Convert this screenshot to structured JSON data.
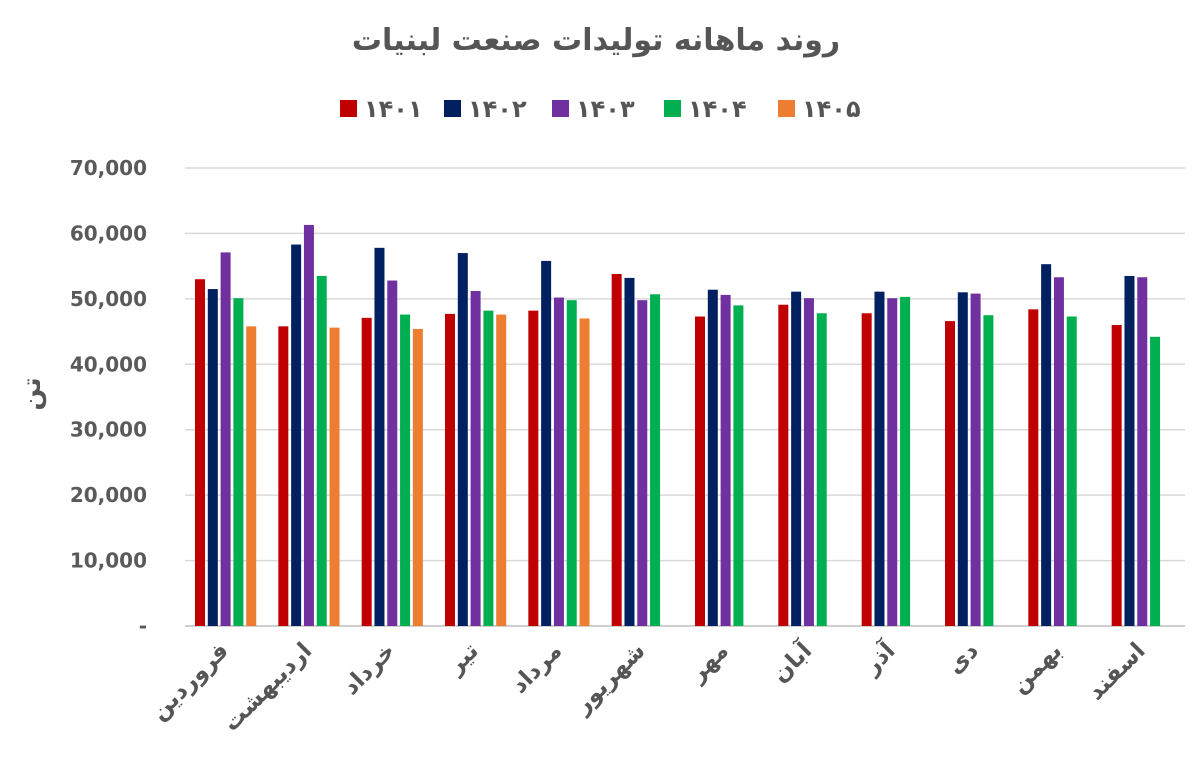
{
  "chart_data": {
    "type": "bar",
    "title": "روند ماهانه تولیدات صنعت لبنیات",
    "ylabel": "تن",
    "xlabel": "",
    "ylim": [
      0,
      70000
    ],
    "y_ticks": [
      "-",
      "10,000",
      "20,000",
      "30,000",
      "40,000",
      "50,000",
      "60,000",
      "70,000"
    ],
    "grid": true,
    "legend_position": "top",
    "categories": [
      "فروردین",
      "اردیبهشت",
      "خرداد",
      "تیر",
      "مرداد",
      "شهریور",
      "مهر",
      "آبان",
      "آذر",
      "دی",
      "بهمن",
      "اسفند"
    ],
    "series": [
      {
        "name": "۱۴۰۱",
        "color": "#c00000",
        "values": [
          53000,
          45800,
          47100,
          47700,
          48200,
          53800,
          47300,
          49100,
          47800,
          46600,
          48400,
          46000
        ]
      },
      {
        "name": "۱۴۰۲",
        "color": "#002060",
        "values": [
          51500,
          58300,
          57800,
          57000,
          55800,
          53200,
          51400,
          51100,
          51100,
          51000,
          55300,
          53500
        ]
      },
      {
        "name": "۱۴۰۳",
        "color": "#7030a0",
        "values": [
          57100,
          61300,
          52800,
          51200,
          50200,
          49800,
          50600,
          50100,
          50100,
          50800,
          53300,
          53300
        ]
      },
      {
        "name": "۱۴۰۴",
        "color": "#00b050",
        "values": [
          50100,
          53500,
          47600,
          48200,
          49800,
          50700,
          49000,
          47800,
          50300,
          47500,
          47300,
          44200
        ]
      },
      {
        "name": "۱۴۰۵",
        "color": "#ed7d31",
        "values": [
          45800,
          45600,
          45400,
          47600,
          47000,
          null,
          null,
          null,
          null,
          null,
          null,
          null
        ]
      }
    ]
  }
}
